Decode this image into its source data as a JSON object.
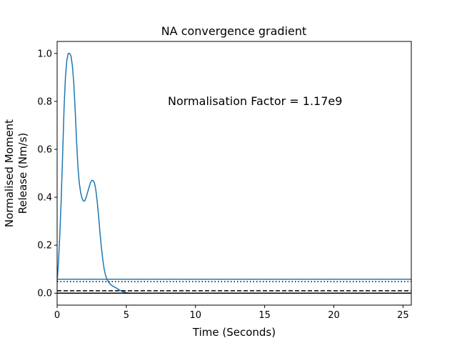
{
  "chart_data": {
    "type": "line",
    "title": "NA convergence gradient",
    "xlabel": "Time (Seconds)",
    "ylabel_line1": "Normalised Moment",
    "ylabel_line2": "Release (Nm/s)",
    "xlim": [
      0,
      25.6
    ],
    "ylim": [
      -0.05,
      1.05
    ],
    "xticks": [
      0,
      5,
      10,
      15,
      20,
      25
    ],
    "xtick_labels": [
      "0",
      "5",
      "10",
      "15",
      "20",
      "25"
    ],
    "yticks": [
      0.0,
      0.2,
      0.4,
      0.6,
      0.8,
      1.0
    ],
    "ytick_labels": [
      "0.0",
      "0.2",
      "0.4",
      "0.6",
      "0.8",
      "1.0"
    ],
    "grid": false,
    "annotation": {
      "text": "Normalisation Factor = 1.17e9",
      "x": 8.0,
      "y": 0.8
    },
    "series": [
      {
        "color": "#1f77b4",
        "style": "solid",
        "x": [
          0,
          0.1,
          0.2,
          0.3,
          0.4,
          0.5,
          0.6,
          0.7,
          0.8,
          0.9,
          1.0,
          1.1,
          1.2,
          1.3,
          1.4,
          1.5,
          1.6,
          1.7,
          1.8,
          1.9,
          2.0,
          2.1,
          2.2,
          2.3,
          2.4,
          2.5,
          2.6,
          2.7,
          2.8,
          2.9,
          3.0,
          3.1,
          3.2,
          3.3,
          3.4,
          3.5,
          3.6,
          3.7,
          3.8,
          3.9,
          4.0,
          4.2,
          4.4,
          4.6,
          4.8,
          5.0,
          5.2,
          5.6,
          6,
          8,
          10,
          15,
          20,
          25.6
        ],
        "y": [
          0.05,
          0.13,
          0.25,
          0.4,
          0.58,
          0.77,
          0.9,
          0.97,
          1.0,
          1.0,
          0.99,
          0.95,
          0.88,
          0.77,
          0.64,
          0.53,
          0.46,
          0.42,
          0.395,
          0.385,
          0.385,
          0.4,
          0.42,
          0.44,
          0.46,
          0.47,
          0.47,
          0.46,
          0.43,
          0.38,
          0.32,
          0.25,
          0.19,
          0.14,
          0.1,
          0.075,
          0.058,
          0.048,
          0.04,
          0.034,
          0.03,
          0.024,
          0.017,
          0.01,
          0.005,
          0.002,
          0.0,
          0.0,
          0.0,
          0.0,
          0.0,
          0.0,
          0.0,
          0.0
        ]
      },
      {
        "color": "#1f77b4",
        "style": "solid",
        "x": [
          0,
          25.6
        ],
        "y": [
          0.058,
          0.058
        ]
      },
      {
        "color": "#000000",
        "style": "dotted",
        "x": [
          0,
          25.6
        ],
        "y": [
          0.048,
          0.048
        ]
      },
      {
        "color": "#000000",
        "style": "dashed",
        "x": [
          0,
          25.6
        ],
        "y": [
          0.01,
          0.01
        ]
      },
      {
        "color": "#000000",
        "style": "solid",
        "x": [
          0,
          25.6
        ],
        "y": [
          0.0,
          0.0
        ]
      }
    ]
  }
}
